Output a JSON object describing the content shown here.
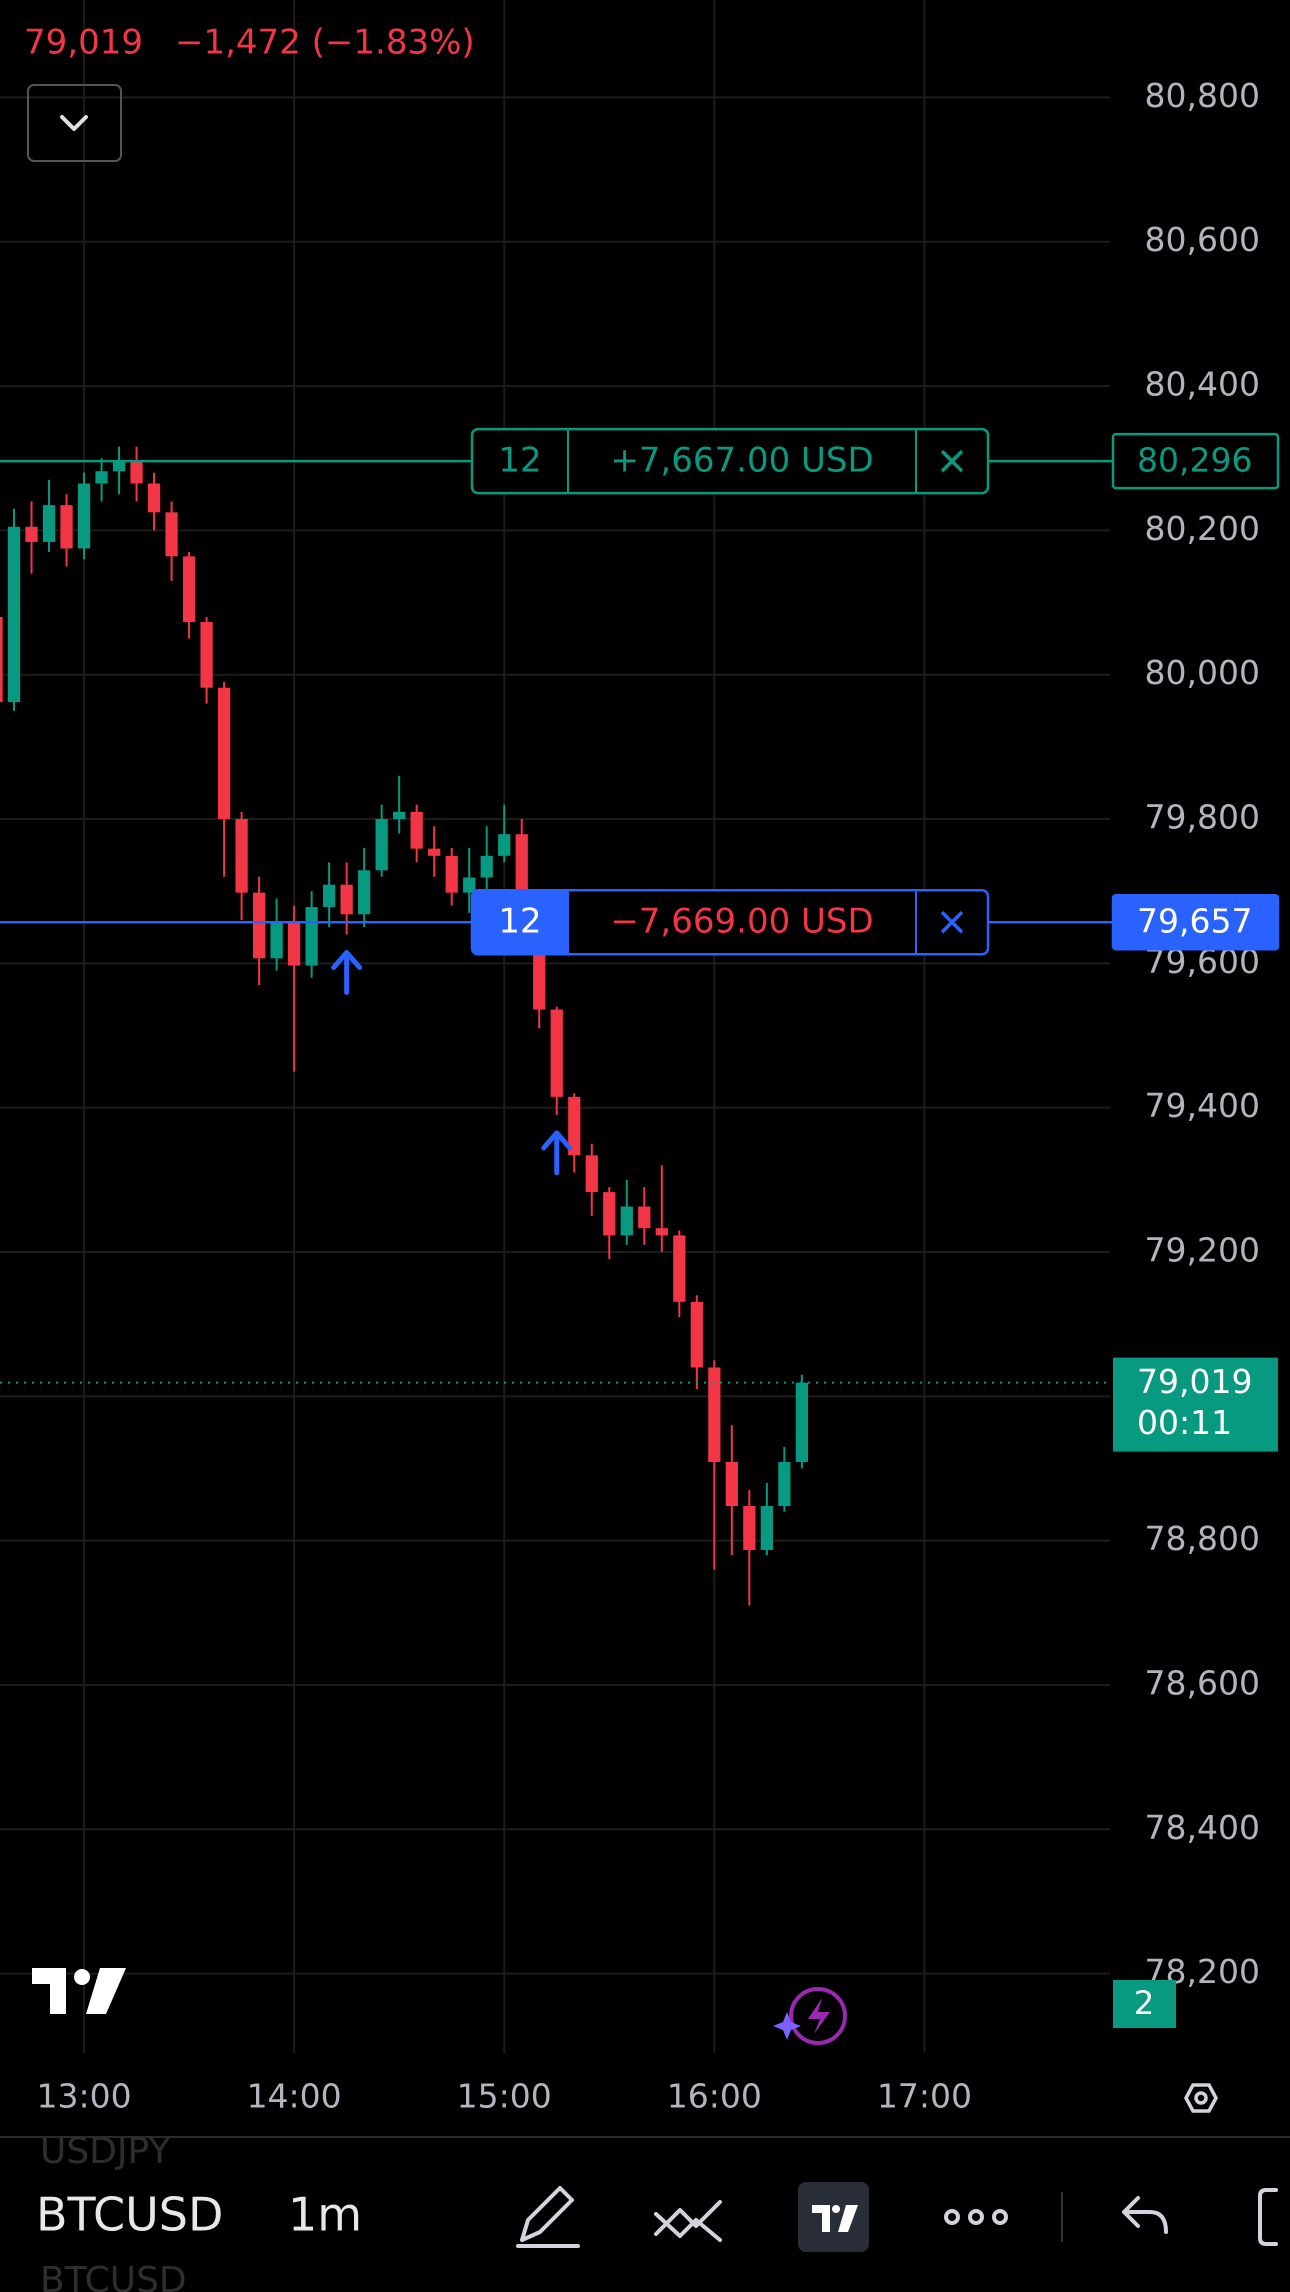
{
  "header": {
    "last": "79,019",
    "change": "−1,472 (−1.83%)"
  },
  "chart_data": {
    "type": "candlestick",
    "x": [
      "12:35",
      "12:40",
      "12:45",
      "12:50",
      "12:55",
      "13:00",
      "13:05",
      "13:10",
      "13:15",
      "13:20",
      "13:25",
      "13:30",
      "13:35",
      "13:40",
      "13:45",
      "13:50",
      "13:55",
      "14:00",
      "14:05",
      "14:10",
      "14:15",
      "14:20",
      "14:25",
      "14:30",
      "14:35",
      "14:40",
      "14:45",
      "14:50",
      "14:55",
      "15:00",
      "15:05",
      "15:10",
      "15:15",
      "15:20",
      "15:25",
      "15:30",
      "15:35",
      "15:40",
      "15:45",
      "15:50",
      "15:55",
      "16:00",
      "16:05",
      "16:10",
      "16:15",
      "16:20",
      "16:25"
    ],
    "open": [
      80080,
      79962,
      80205,
      80184,
      80235,
      80175,
      80265,
      80282,
      80296,
      80265,
      80225,
      80164,
      80073,
      79982,
      79800,
      79698,
      79607,
      79658,
      79597,
      79678,
      79709,
      79668,
      79729,
      79800,
      79810,
      79759,
      79749,
      79698,
      79719,
      79749,
      79779,
      79698,
      79536,
      79415,
      79334,
      79283,
      79223,
      79263,
      79233,
      79223,
      79131,
      79040,
      78909,
      78848,
      78787,
      78848,
      78909
    ],
    "high": [
      80090,
      80230,
      80240,
      80270,
      80250,
      80280,
      80300,
      80316,
      80316,
      80280,
      80240,
      80170,
      80080,
      79990,
      79810,
      79720,
      79690,
      79680,
      79700,
      79740,
      79740,
      79760,
      79820,
      79860,
      79820,
      79790,
      79760,
      79760,
      79790,
      79820,
      79800,
      79700,
      79540,
      79420,
      79350,
      79290,
      79300,
      79290,
      79320,
      79230,
      79140,
      79050,
      78960,
      78870,
      78880,
      78930,
      79030
    ],
    "low": [
      79830,
      79950,
      80140,
      80170,
      80150,
      80160,
      80240,
      80250,
      80240,
      80200,
      80130,
      80050,
      79960,
      79720,
      79660,
      79570,
      79590,
      79450,
      79580,
      79650,
      79640,
      79650,
      79720,
      79780,
      79740,
      79720,
      79680,
      79670,
      79690,
      79740,
      79660,
      79510,
      79390,
      79310,
      79250,
      79190,
      79210,
      79210,
      79200,
      79110,
      79010,
      78760,
      78780,
      78710,
      78780,
      78840,
      78900
    ],
    "close": [
      79962,
      80205,
      80184,
      80235,
      80175,
      80265,
      80282,
      80296,
      80265,
      80225,
      80164,
      80073,
      79982,
      79800,
      79698,
      79607,
      79658,
      79597,
      79678,
      79709,
      79668,
      79729,
      79800,
      79810,
      79759,
      79749,
      79698,
      79719,
      79749,
      79779,
      79698,
      79536,
      79415,
      79334,
      79283,
      79223,
      79263,
      79233,
      79223,
      79131,
      79040,
      78909,
      78848,
      78787,
      78848,
      78909,
      79019
    ],
    "up_color": "#089981",
    "down_color": "#f23645",
    "xlim": [
      "12:36",
      "17:53"
    ],
    "xticks": [
      "13:00",
      "14:00",
      "15:00",
      "16:00",
      "17:00"
    ],
    "ylim": [
      78090,
      80935
    ],
    "yticks": [
      {
        "value": 78200,
        "label": "78,200"
      },
      {
        "value": 78400,
        "label": "78,400"
      },
      {
        "value": 78600,
        "label": "78,600"
      },
      {
        "value": 78800,
        "label": "78,800"
      },
      {
        "value": 79000,
        "label": "79,000"
      },
      {
        "value": 79200,
        "label": "79,200"
      },
      {
        "value": 79400,
        "label": "79,400"
      },
      {
        "value": 79600,
        "label": "79,600"
      },
      {
        "value": 79800,
        "label": "79,800"
      },
      {
        "value": 80000,
        "label": "80,000"
      },
      {
        "value": 80200,
        "label": "80,200"
      },
      {
        "value": 80400,
        "label": "80,400"
      },
      {
        "value": 80600,
        "label": "80,600"
      },
      {
        "value": 80800,
        "label": "80,800"
      }
    ],
    "grid": true,
    "positions": [
      {
        "qty": "12",
        "pnl": "+7,667.00 USD",
        "price": 80296,
        "price_label": "80,296",
        "color": "#089981",
        "pnl_color": "#089981",
        "filled": false
      },
      {
        "qty": "12",
        "pnl": "−7,669.00 USD",
        "price": 79657,
        "price_label": "79,657",
        "color": "#2962ff",
        "pnl_color": "#f23645",
        "filled": true
      }
    ],
    "last": {
      "price": 79019,
      "label": "79,019",
      "countdown": "00:11",
      "color": "#089981"
    },
    "markers": [
      {
        "x": "14:15"
      },
      {
        "x": "15:15"
      }
    ],
    "marker_color": "#2962ff"
  },
  "badge": "2",
  "toolbar": {
    "symbol": "BTCUSD",
    "interval": "1m"
  },
  "watchlist": [
    "USDJPY",
    "BTCUSD"
  ]
}
